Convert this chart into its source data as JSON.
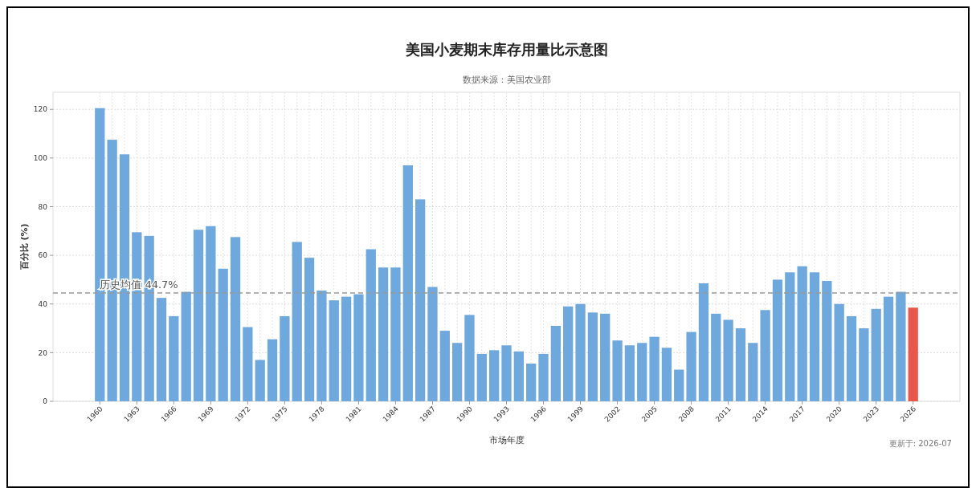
{
  "chart_data": {
    "type": "bar",
    "title": "美国小麦期末库存用量比示意图",
    "subtitle": "数据来源：美国农业部",
    "xlabel": "市场年度",
    "ylabel": "百分比 (%)",
    "categories": [
      "1960",
      null,
      null,
      "1963",
      null,
      null,
      "1966",
      null,
      null,
      "1969",
      null,
      null,
      "1972",
      null,
      null,
      "1975",
      null,
      null,
      "1978",
      null,
      null,
      "1981",
      null,
      null,
      "1984",
      null,
      null,
      "1987",
      null,
      null,
      "1990",
      null,
      null,
      "1993",
      null,
      null,
      "1996",
      null,
      null,
      "1999",
      null,
      null,
      "2002",
      null,
      null,
      "2005",
      null,
      null,
      "2008",
      null,
      null,
      "2011",
      null,
      null,
      "2014",
      null,
      null,
      "2017",
      null,
      null,
      "2020",
      null,
      null,
      "2023",
      null,
      null,
      "2026"
    ],
    "values": [
      120.5,
      107.5,
      101.5,
      69.5,
      68,
      42.5,
      35,
      45,
      70.5,
      72,
      54.5,
      67.5,
      30.5,
      17,
      25.5,
      35,
      65.5,
      59,
      45.5,
      41.5,
      43,
      44,
      62.5,
      55,
      55,
      97,
      83,
      47,
      29,
      24,
      35.5,
      19.5,
      21,
      23,
      20.5,
      15.5,
      19.5,
      31,
      39,
      40,
      36.5,
      36,
      25,
      23,
      24,
      26.5,
      22,
      13,
      28.5,
      48.5,
      36,
      33.5,
      30,
      24,
      37.5,
      50,
      53,
      55.5,
      53,
      49.5,
      40,
      35,
      30,
      38,
      43,
      45,
      38.5
    ],
    "colors": [
      "#6fa8dc",
      "#6fa8dc",
      "#6fa8dc",
      "#6fa8dc",
      "#6fa8dc",
      "#6fa8dc",
      "#6fa8dc",
      "#6fa8dc",
      "#6fa8dc",
      "#6fa8dc",
      "#6fa8dc",
      "#6fa8dc",
      "#6fa8dc",
      "#6fa8dc",
      "#6fa8dc",
      "#6fa8dc",
      "#6fa8dc",
      "#6fa8dc",
      "#6fa8dc",
      "#6fa8dc",
      "#6fa8dc",
      "#6fa8dc",
      "#6fa8dc",
      "#6fa8dc",
      "#6fa8dc",
      "#6fa8dc",
      "#6fa8dc",
      "#6fa8dc",
      "#6fa8dc",
      "#6fa8dc",
      "#6fa8dc",
      "#6fa8dc",
      "#6fa8dc",
      "#6fa8dc",
      "#6fa8dc",
      "#6fa8dc",
      "#6fa8dc",
      "#6fa8dc",
      "#6fa8dc",
      "#6fa8dc",
      "#6fa8dc",
      "#6fa8dc",
      "#6fa8dc",
      "#6fa8dc",
      "#6fa8dc",
      "#6fa8dc",
      "#6fa8dc",
      "#6fa8dc",
      "#6fa8dc",
      "#6fa8dc",
      "#6fa8dc",
      "#6fa8dc",
      "#6fa8dc",
      "#6fa8dc",
      "#6fa8dc",
      "#6fa8dc",
      "#6fa8dc",
      "#6fa8dc",
      "#6fa8dc",
      "#6fa8dc",
      "#6fa8dc",
      "#6fa8dc",
      "#6fa8dc",
      "#6fa8dc",
      "#6fa8dc",
      "#6fa8dc",
      "#e8574a"
    ],
    "ylim": [
      0,
      127
    ],
    "yticks": [
      0,
      20,
      40,
      60,
      80,
      100,
      120
    ],
    "grid": true,
    "ref_lines": [
      {
        "axis": "y",
        "value": 44.5,
        "label": "历史均值 44.7%",
        "color": "#999999",
        "line_style": "dashed"
      }
    ],
    "annotations": [
      "更新于: 2026-07"
    ]
  }
}
